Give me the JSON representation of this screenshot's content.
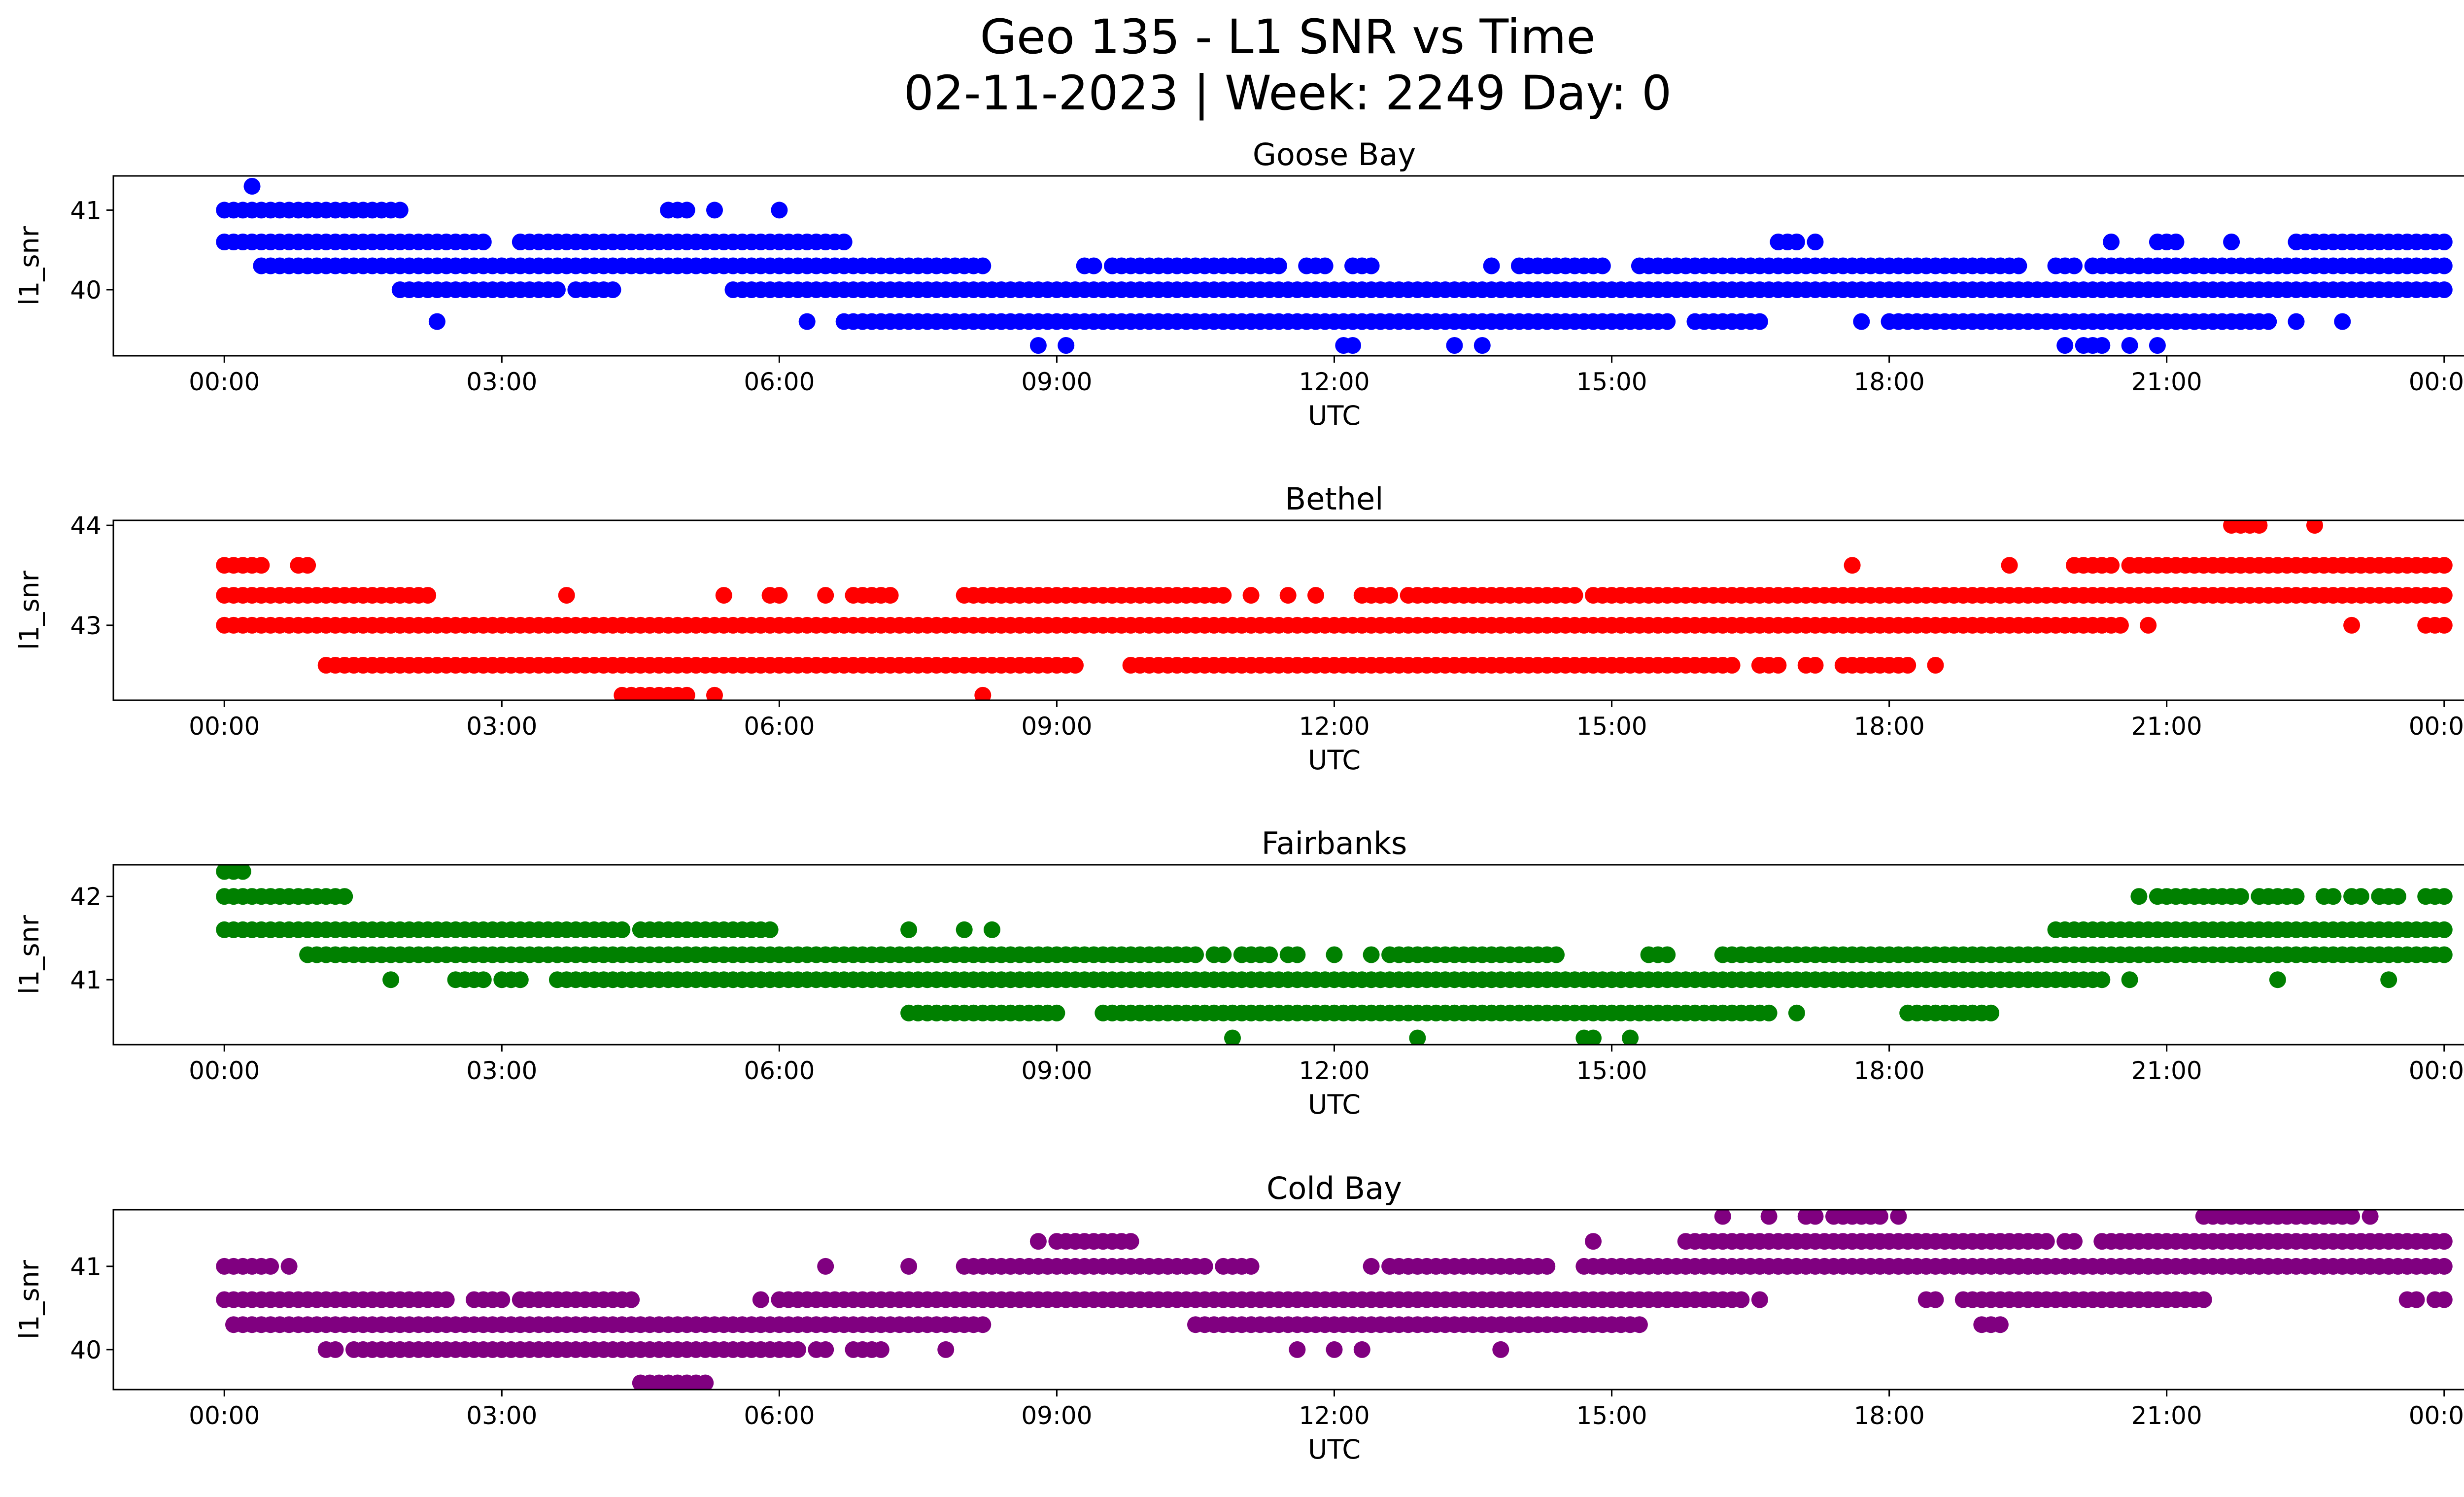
{
  "chart_data": {
    "type": "scatter",
    "title_lines": [
      "Geo 135 - L1 SNR vs Time",
      "02-11-2023 | Week: 2249 Day: 0"
    ],
    "x_ticks": [
      "00:00",
      "03:00",
      "06:00",
      "09:00",
      "12:00",
      "15:00",
      "18:00",
      "21:00",
      "00:00"
    ],
    "xlim_hours": [
      -1.2,
      25.2
    ],
    "panels": [
      {
        "name": "Goose Bay",
        "color": "#0000ff",
        "xlabel": "UTC",
        "ylabel": "l1_snr",
        "ylim": [
          39.17,
          41.43
        ],
        "yticks": [
          40,
          41
        ],
        "points": [
          {
            "y": 41.3,
            "ranges": [
              [
                0.3,
                0.3
              ]
            ]
          },
          {
            "y": 41.0,
            "ranges": [
              [
                0.0,
                1.9
              ],
              [
                4.8,
                5.0
              ],
              [
                5.3,
                5.3
              ],
              [
                6.0,
                6.0
              ]
            ]
          },
          {
            "y": 40.6,
            "ranges": [
              [
                0.0,
                2.5
              ],
              [
                2.6,
                2.8
              ],
              [
                3.2,
                6.7
              ]
            ]
          },
          {
            "y": 40.6,
            "ranges": [
              [
                16.8,
                17.0
              ],
              [
                17.2,
                17.2
              ],
              [
                20.4,
                20.4
              ],
              [
                20.9,
                21.1
              ],
              [
                21.7,
                21.7
              ],
              [
                22.4,
                24.0
              ]
            ]
          },
          {
            "y": 40.3,
            "ranges": [
              [
                0.4,
                8.2
              ],
              [
                9.3,
                9.4
              ],
              [
                9.6,
                11.4
              ],
              [
                11.7,
                11.9
              ],
              [
                12.2,
                12.4
              ],
              [
                13.7,
                13.7
              ],
              [
                14.0,
                14.9
              ],
              [
                15.3,
                18.8
              ],
              [
                18.9,
                19.4
              ],
              [
                19.8,
                20.0
              ],
              [
                20.2,
                24.0
              ]
            ]
          },
          {
            "y": 40.0,
            "ranges": [
              [
                1.9,
                2.3
              ],
              [
                2.4,
                3.6
              ],
              [
                3.8,
                4.2
              ],
              [
                5.5,
                24.0
              ]
            ]
          },
          {
            "y": 39.6,
            "ranges": [
              [
                2.3,
                2.3
              ],
              [
                6.3,
                6.3
              ],
              [
                6.7,
                15.6
              ],
              [
                15.9,
                16.3
              ],
              [
                16.4,
                16.6
              ],
              [
                17.7,
                17.7
              ],
              [
                18.0,
                21.3
              ],
              [
                21.4,
                22.1
              ],
              [
                22.4,
                22.4
              ],
              [
                22.9,
                22.9
              ]
            ]
          },
          {
            "y": 39.3,
            "ranges": [
              [
                8.8,
                8.8
              ],
              [
                9.1,
                9.1
              ],
              [
                12.1,
                12.2
              ],
              [
                13.3,
                13.3
              ],
              [
                13.6,
                13.6
              ],
              [
                19.9,
                19.9
              ],
              [
                20.1,
                20.3
              ],
              [
                20.6,
                20.6
              ],
              [
                20.9,
                20.9
              ]
            ]
          }
        ]
      },
      {
        "name": "Bethel",
        "color": "#ff0000",
        "xlabel": "UTC",
        "ylabel": "l1_snr",
        "ylim": [
          42.25,
          44.05
        ],
        "yticks": [
          43,
          44
        ],
        "points": [
          {
            "y": 44.0,
            "ranges": [
              [
                21.7,
                22.0
              ],
              [
                22.6,
                22.6
              ]
            ]
          },
          {
            "y": 43.6,
            "ranges": [
              [
                0.0,
                0.4
              ],
              [
                0.8,
                0.9
              ],
              [
                17.6,
                17.6
              ],
              [
                19.3,
                19.3
              ],
              [
                20.0,
                20.4
              ],
              [
                20.6,
                24.0
              ]
            ]
          },
          {
            "y": 43.3,
            "ranges": [
              [
                0.0,
                2.2
              ],
              [
                3.7,
                3.7
              ],
              [
                5.4,
                5.4
              ],
              [
                5.9,
                6.0
              ],
              [
                6.5,
                6.5
              ],
              [
                6.8,
                6.9
              ],
              [
                7.0,
                7.2
              ],
              [
                8.0,
                10.8
              ],
              [
                11.1,
                11.1
              ],
              [
                11.5,
                11.5
              ],
              [
                11.8,
                11.8
              ],
              [
                12.3,
                12.6
              ],
              [
                12.8,
                14.6
              ],
              [
                14.8,
                24.0
              ]
            ]
          },
          {
            "y": 43.0,
            "ranges": [
              [
                0.0,
                20.5
              ],
              [
                20.8,
                20.8
              ],
              [
                23.0,
                23.0
              ],
              [
                23.8,
                24.0
              ]
            ]
          },
          {
            "y": 42.6,
            "ranges": [
              [
                1.1,
                9.2
              ],
              [
                9.8,
                16.3
              ],
              [
                16.6,
                16.8
              ],
              [
                17.1,
                17.2
              ],
              [
                17.5,
                17.9
              ],
              [
                18.0,
                18.2
              ],
              [
                18.5,
                18.5
              ]
            ]
          },
          {
            "y": 42.3,
            "ranges": [
              [
                4.3,
                5.0
              ],
              [
                5.3,
                5.3
              ],
              [
                8.2,
                8.2
              ]
            ]
          }
        ]
      },
      {
        "name": "Fairbanks",
        "color": "#008000",
        "xlabel": "UTC",
        "ylabel": "l1_snr",
        "ylim": [
          40.22,
          42.38
        ],
        "yticks": [
          41,
          42
        ],
        "points": [
          {
            "y": 42.3,
            "ranges": [
              [
                0.0,
                0.2
              ]
            ]
          },
          {
            "y": 42.0,
            "ranges": [
              [
                0.0,
                1.3
              ],
              [
                20.7,
                20.7
              ],
              [
                20.9,
                21.8
              ],
              [
                22.0,
                22.4
              ],
              [
                22.7,
                22.8
              ],
              [
                23.0,
                23.1
              ],
              [
                23.3,
                23.5
              ],
              [
                23.8,
                24.0
              ]
            ]
          },
          {
            "y": 41.6,
            "ranges": [
              [
                0.0,
                4.3
              ],
              [
                4.5,
                4.8
              ],
              [
                4.9,
                5.9
              ],
              [
                7.4,
                7.4
              ],
              [
                8.0,
                8.0
              ],
              [
                8.3,
                8.3
              ],
              [
                19.8,
                24.0
              ]
            ]
          },
          {
            "y": 41.3,
            "ranges": [
              [
                0.9,
                10.5
              ],
              [
                10.7,
                10.8
              ],
              [
                11.0,
                11.3
              ],
              [
                11.5,
                11.6
              ],
              [
                12.0,
                12.0
              ],
              [
                12.4,
                12.4
              ],
              [
                12.6,
                13.2
              ],
              [
                13.3,
                13.4
              ],
              [
                13.5,
                13.7
              ],
              [
                13.8,
                14.0
              ],
              [
                14.1,
                14.4
              ],
              [
                15.4,
                15.6
              ],
              [
                16.2,
                24.0
              ]
            ]
          },
          {
            "y": 41.0,
            "ranges": [
              [
                1.8,
                1.8
              ],
              [
                2.5,
                2.8
              ],
              [
                3.0,
                3.2
              ],
              [
                3.6,
                4.0
              ],
              [
                4.1,
                5.8
              ],
              [
                5.8,
                20.3
              ],
              [
                20.6,
                20.6
              ],
              [
                22.2,
                22.2
              ],
              [
                23.4,
                23.4
              ]
            ]
          },
          {
            "y": 40.6,
            "ranges": [
              [
                7.4,
                9.0
              ],
              [
                9.5,
                16.7
              ],
              [
                17.0,
                17.0
              ],
              [
                18.2,
                19.1
              ]
            ]
          },
          {
            "y": 40.3,
            "ranges": [
              [
                10.9,
                10.9
              ],
              [
                12.9,
                12.9
              ],
              [
                14.7,
                14.8
              ],
              [
                15.2,
                15.2
              ]
            ]
          }
        ]
      },
      {
        "name": "Cold Bay",
        "color": "#800080",
        "xlabel": "UTC",
        "ylabel": "l1_snr",
        "ylim": [
          39.52,
          41.68
        ],
        "yticks": [
          40,
          41
        ],
        "points": [
          {
            "y": 41.6,
            "ranges": [
              [
                16.2,
                16.2
              ],
              [
                16.7,
                16.7
              ],
              [
                17.1,
                17.2
              ],
              [
                17.4,
                17.9
              ],
              [
                18.1,
                18.1
              ],
              [
                21.4,
                22.4
              ],
              [
                22.5,
                23.0
              ],
              [
                23.2,
                23.2
              ]
            ]
          },
          {
            "y": 41.3,
            "ranges": [
              [
                8.8,
                8.8
              ],
              [
                9.0,
                9.8
              ],
              [
                14.8,
                14.8
              ],
              [
                15.8,
                19.5
              ],
              [
                19.6,
                19.7
              ],
              [
                19.9,
                20.0
              ],
              [
                20.3,
                24.0
              ]
            ]
          },
          {
            "y": 41.0,
            "ranges": [
              [
                0.0,
                0.5
              ],
              [
                0.7,
                0.7
              ],
              [
                6.5,
                6.5
              ],
              [
                7.4,
                7.4
              ],
              [
                8.0,
                8.0
              ],
              [
                8.1,
                10.6
              ],
              [
                10.8,
                11.1
              ],
              [
                12.4,
                12.4
              ],
              [
                12.6,
                13.7
              ],
              [
                13.8,
                14.3
              ],
              [
                14.7,
                24.0
              ]
            ]
          },
          {
            "y": 40.6,
            "ranges": [
              [
                0.0,
                2.2
              ],
              [
                2.3,
                2.4
              ],
              [
                2.7,
                3.0
              ],
              [
                3.2,
                4.4
              ],
              [
                5.8,
                5.8
              ],
              [
                6.0,
                16.4
              ],
              [
                16.6,
                16.6
              ],
              [
                18.4,
                18.5
              ],
              [
                18.8,
                20.3
              ],
              [
                20.4,
                21.4
              ],
              [
                23.6,
                23.7
              ],
              [
                23.9,
                24.0
              ]
            ]
          },
          {
            "y": 40.3,
            "ranges": [
              [
                0.1,
                8.2
              ],
              [
                10.5,
                15.3
              ],
              [
                19.0,
                19.2
              ]
            ]
          },
          {
            "y": 40.0,
            "ranges": [
              [
                1.1,
                1.2
              ],
              [
                1.4,
                1.9
              ],
              [
                2.0,
                6.2
              ],
              [
                6.4,
                6.5
              ],
              [
                6.8,
                7.1
              ],
              [
                7.8,
                7.8
              ],
              [
                11.6,
                11.6
              ],
              [
                12.0,
                12.0
              ],
              [
                12.3,
                12.3
              ],
              [
                13.8,
                13.8
              ]
            ]
          },
          {
            "y": 39.6,
            "ranges": [
              [
                4.5,
                5.2
              ]
            ]
          }
        ]
      }
    ]
  }
}
